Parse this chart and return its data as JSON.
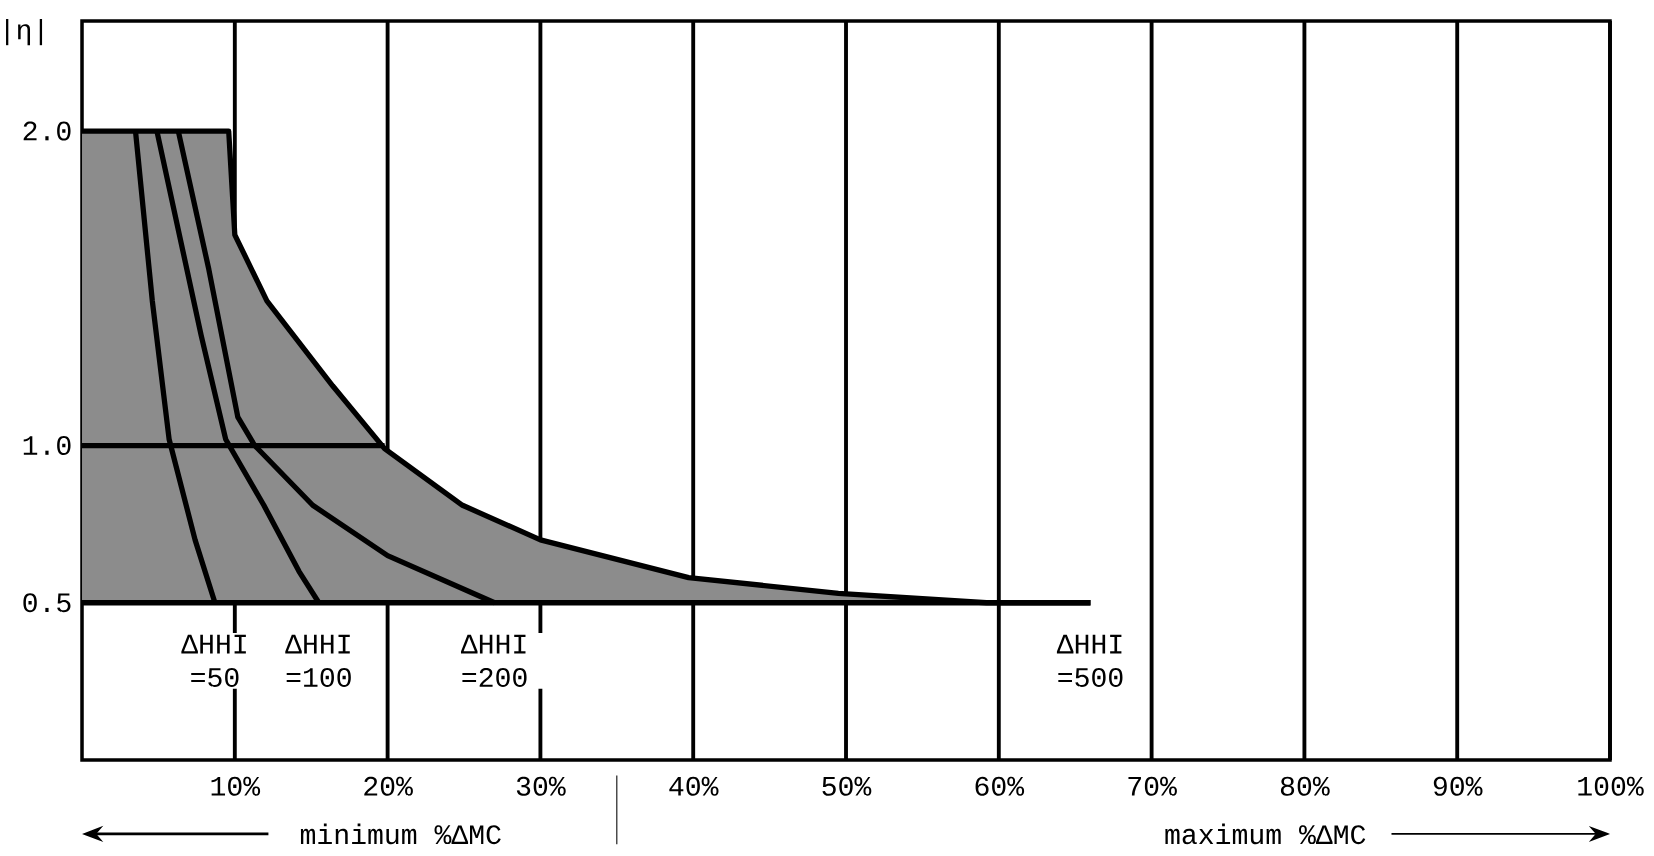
{
  "chart_data": {
    "type": "line",
    "ylabel": "|η|",
    "annotations": [
      "minimum %ΔMC",
      "maximum %ΔMC"
    ],
    "xlim": [
      0,
      100
    ],
    "xticks": [
      {
        "value": 10,
        "label": "10%"
      },
      {
        "value": 20,
        "label": "20%"
      },
      {
        "value": 30,
        "label": "30%"
      },
      {
        "value": 40,
        "label": "40%"
      },
      {
        "value": 50,
        "label": "50%"
      },
      {
        "value": 60,
        "label": "60%"
      },
      {
        "value": 70,
        "label": "70%"
      },
      {
        "value": 80,
        "label": "80%"
      },
      {
        "value": 90,
        "label": "90%"
      },
      {
        "value": 100,
        "label": "100%"
      }
    ],
    "ylim": [
      0,
      2.35
    ],
    "yticks": [
      {
        "value": 0.5,
        "label": "0.5"
      },
      {
        "value": 1,
        "label": "1.0"
      },
      {
        "value": 2,
        "label": "2.0"
      }
    ],
    "grid": "x",
    "marker": "none",
    "line_style": "solid",
    "series": [
      {
        "name": "ΔHHI =500",
        "type": "area",
        "color": "#000000",
        "x": [
          0,
          9.6,
          10,
          12.1,
          16.4,
          19.8,
          24.9,
          30,
          39.7,
          49.5,
          59.2,
          66
        ],
        "values": [
          2,
          2,
          1.67,
          1.46,
          1.19,
          0.99,
          0.81,
          0.7,
          0.58,
          0.53,
          0.5,
          0.5
        ]
      },
      {
        "color": "#000000",
        "x": [
          0,
          66
        ],
        "values": [
          0.5,
          0.5
        ]
      },
      {
        "name": "ΔHHI =50",
        "color": "#000000",
        "x": [
          3.5,
          4.6,
          5.7,
          7.4,
          8.7
        ],
        "values": [
          2,
          1.46,
          1.02,
          0.7,
          0.5
        ]
      },
      {
        "name": "ΔHHI =100",
        "color": "#000000",
        "x": [
          4.9,
          7.8,
          9.4,
          11.9,
          14.2,
          15.5
        ],
        "values": [
          2,
          1.35,
          1.02,
          0.81,
          0.6,
          0.5
        ]
      },
      {
        "name": "ΔHHI =200",
        "color": "#000000",
        "x": [
          6.3,
          8.3,
          10.2,
          11.3,
          15.1,
          20,
          27
        ],
        "values": [
          2,
          1.56,
          1.09,
          1.0,
          0.81,
          0.65,
          0.5
        ]
      },
      {
        "color": "#000000",
        "x": [
          0,
          19.8
        ],
        "values": [
          1,
          1
        ]
      }
    ]
  }
}
